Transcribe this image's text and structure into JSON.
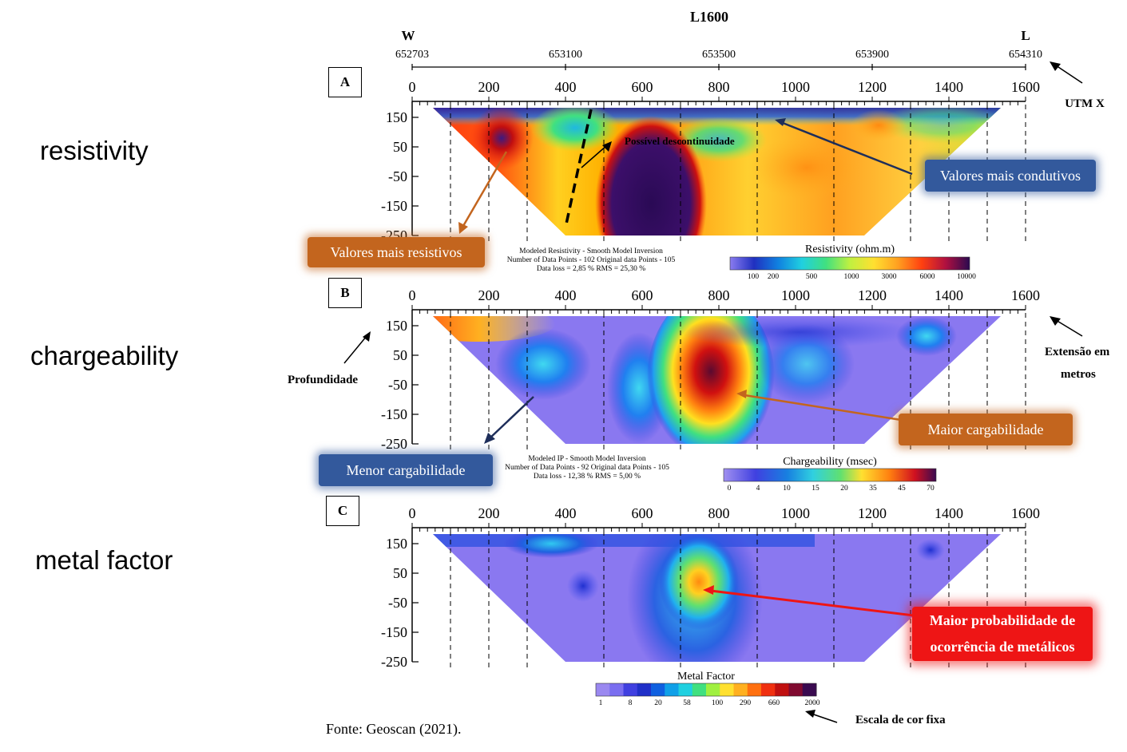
{
  "title": "L1600",
  "utm": {
    "west_label": "W",
    "east_label": "L",
    "ticks": [
      "652703",
      "653100",
      "653500",
      "653900",
      "654310"
    ],
    "axis_label": "UTM X"
  },
  "x_axis_ticks": [
    "0",
    "200",
    "400",
    "600",
    "800",
    "1000",
    "1200",
    "1400",
    "1600"
  ],
  "depth_ticks": [
    "150",
    "50",
    "-50",
    "-150",
    "-250"
  ],
  "side_labels": {
    "resistivity": "resistivity",
    "chargeability": "chargeability",
    "metal_factor": "metal factor"
  },
  "panels": [
    {
      "letter": "A",
      "stats": [
        "Modeled Resistivity - Smooth Model Inversion",
        "Number of Data Points - 102   Original data Points - 105",
        "Data loss = 2,85 %                          RMS = 25,30 %"
      ],
      "scale_title": "Resistivity (ohm.m)",
      "scale_ticks": [
        "100",
        "200",
        "500",
        "1000",
        "3000",
        "6000",
        "10000"
      ],
      "annotation": "Possível descontinuidade"
    },
    {
      "letter": "B",
      "stats": [
        "Modeled IP - Smooth Model Inversion",
        "Number of Data Points - 92   Original data Points - 105",
        "Data loss - 12,38 %                       RMS = 5,00 %"
      ],
      "scale_title": "Chargeability (msec)",
      "scale_ticks": [
        "0",
        "4",
        "10",
        "15",
        "20",
        "35",
        "45",
        "70"
      ]
    },
    {
      "letter": "C",
      "scale_title": "Metal Factor",
      "scale_ticks": [
        "1",
        "8",
        "20",
        "58",
        "100",
        "290",
        "660",
        "2000"
      ]
    }
  ],
  "callouts": {
    "valores_resistivos": "Valores mais resistivos",
    "valores_condutivos": "Valores mais condutivos",
    "maior_cargabilidade": "Maior cargabilidade",
    "menor_cargabilidade": "Menor cargabilidade",
    "metalicos_line1": "Maior probabilidade de",
    "metalicos_line2": "ocorrência de metálicos"
  },
  "notes": {
    "profundidade": "Profundidade",
    "extensao_line1": "Extensão em",
    "extensao_line2": "metros",
    "escala_fixa": "Escala de cor fixa",
    "source": "Fonte: Geoscan (2021)."
  },
  "colors": {
    "orange_callout": "#c3651e",
    "blue_callout": "#33599c",
    "red_callout": "#ee1515"
  }
}
